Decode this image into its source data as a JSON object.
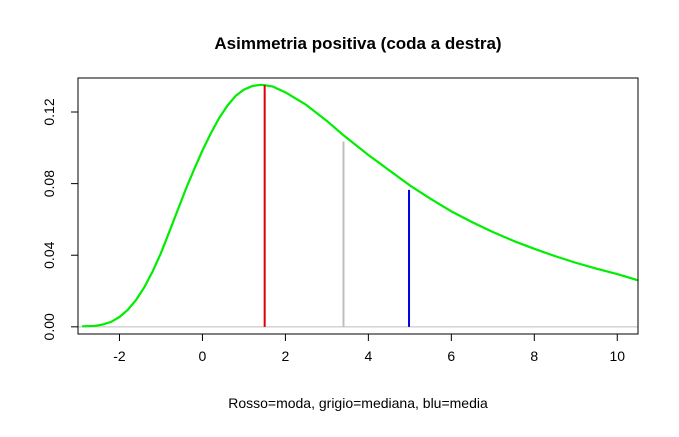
{
  "chart_data": {
    "type": "line",
    "title": "Asimmetria positiva (coda a destra)",
    "xlabel": "Rosso=moda, grigio=mediana, blu=media",
    "ylabel": "",
    "xlim": [
      -3,
      10.5
    ],
    "ylim": [
      -0.004,
      0.139
    ],
    "x_ticks": [
      -2,
      0,
      2,
      4,
      6,
      8,
      10
    ],
    "y_ticks": [
      0.0,
      0.04,
      0.08,
      0.12
    ],
    "x_tick_labels": [
      "-2",
      "0",
      "2",
      "4",
      "6",
      "8",
      "10"
    ],
    "y_tick_labels": [
      "0.00",
      "0.04",
      "0.08",
      "0.12"
    ],
    "grid": false,
    "series": [
      {
        "color": "#00ee00",
        "x": [
          -2.9,
          -2.6,
          -2.4,
          -2.2,
          -2.0,
          -1.8,
          -1.6,
          -1.4,
          -1.2,
          -1.0,
          -0.8,
          -0.6,
          -0.4,
          -0.2,
          0.0,
          0.2,
          0.4,
          0.6,
          0.8,
          1.0,
          1.2,
          1.4,
          1.5,
          1.7,
          2.0,
          2.5,
          3.0,
          3.4,
          4.0,
          4.5,
          5.0,
          5.5,
          6.0,
          6.5,
          7.0,
          7.5,
          8.0,
          8.5,
          9.0,
          9.5,
          10.0,
          10.5
        ],
        "y": [
          0.0003,
          0.0005,
          0.0013,
          0.0028,
          0.0055,
          0.0095,
          0.015,
          0.0222,
          0.031,
          0.0412,
          0.053,
          0.065,
          0.077,
          0.088,
          0.0985,
          0.108,
          0.1165,
          0.1235,
          0.129,
          0.1325,
          0.1345,
          0.1352,
          0.135,
          0.1342,
          0.131,
          0.124,
          0.115,
          0.107,
          0.096,
          0.0875,
          0.079,
          0.0715,
          0.0645,
          0.0585,
          0.053,
          0.048,
          0.0436,
          0.0395,
          0.0358,
          0.0325,
          0.0295,
          0.026
        ]
      }
    ],
    "vertical_lines": [
      {
        "x": 1.5,
        "y": 0.135,
        "color": "#dd0000"
      },
      {
        "x": 3.4,
        "y": 0.1035,
        "color": "#bebebe"
      },
      {
        "x": 4.98,
        "y": 0.0765,
        "color": "#0000dd"
      }
    ],
    "baseline": {
      "y": 0,
      "color": "#bebebe"
    }
  }
}
